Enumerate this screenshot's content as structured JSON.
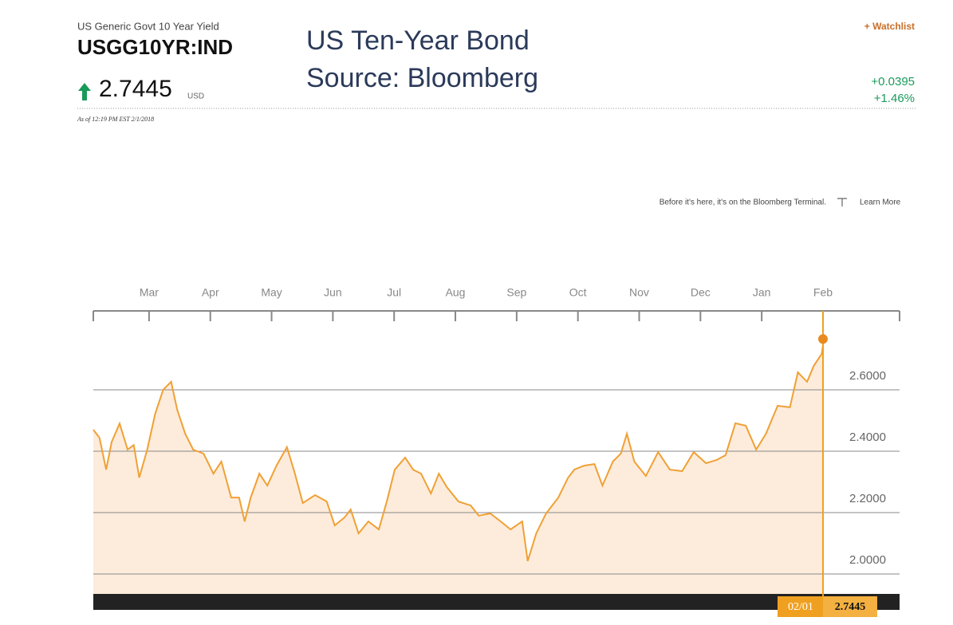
{
  "header": {
    "subtitle": "US Generic Govt 10 Year Yield",
    "ticker": "USGG10YR:IND",
    "price": "2.7445",
    "currency": "USD",
    "as_of": "As of 12:19 PM EST 2/1/2018",
    "watchlist": "+ Watchlist",
    "change": "+0.0395",
    "change_pct": "+1.46%"
  },
  "overlay": {
    "line1": "US Ten-Year Bond",
    "line2": "Source: Bloomberg"
  },
  "promo": {
    "text": "Before it's here, it's on the Bloomberg Terminal.",
    "link": "Learn More"
  },
  "chart_data": {
    "type": "line",
    "color": "#f0a035",
    "fill": "#fdecdb",
    "x": [
      0.09,
      0.19,
      0.3,
      0.39,
      0.52,
      0.65,
      0.75,
      0.84,
      0.97,
      1.1,
      1.23,
      1.36,
      1.46,
      1.59,
      1.72,
      1.89,
      2.05,
      2.18,
      2.34,
      2.47,
      2.56,
      2.66,
      2.8,
      2.93,
      3.08,
      3.25,
      3.38,
      3.51,
      3.71,
      3.9,
      4.03,
      4.19,
      4.29,
      4.42,
      4.58,
      4.75,
      4.88,
      5.01,
      5.18,
      5.31,
      5.44,
      5.6,
      5.73,
      5.86,
      6.05,
      6.25,
      6.38,
      6.57,
      6.74,
      6.9,
      7.09,
      7.18,
      7.32,
      7.48,
      7.68,
      7.84,
      7.94,
      8.1,
      8.27,
      8.4,
      8.57,
      8.7,
      8.8,
      8.92,
      9.11,
      9.31,
      9.5,
      9.7,
      9.89,
      10.09,
      10.26,
      10.41,
      10.57,
      10.74,
      10.91,
      11.07,
      11.26,
      11.46,
      11.59,
      11.74,
      11.85,
      11.98,
      12.0
    ],
    "values": [
      2.47,
      2.444,
      2.34,
      2.43,
      2.49,
      2.405,
      2.42,
      2.314,
      2.405,
      2.522,
      2.6,
      2.626,
      2.535,
      2.457,
      2.405,
      2.392,
      2.327,
      2.366,
      2.249,
      2.249,
      2.171,
      2.249,
      2.327,
      2.288,
      2.353,
      2.413,
      2.327,
      2.231,
      2.257,
      2.236,
      2.158,
      2.184,
      2.21,
      2.132,
      2.171,
      2.145,
      2.236,
      2.34,
      2.379,
      2.34,
      2.327,
      2.262,
      2.327,
      2.283,
      2.236,
      2.223,
      2.19,
      2.197,
      2.171,
      2.145,
      2.171,
      2.042,
      2.132,
      2.197,
      2.249,
      2.314,
      2.34,
      2.353,
      2.358,
      2.288,
      2.366,
      2.392,
      2.457,
      2.366,
      2.319,
      2.397,
      2.34,
      2.335,
      2.397,
      2.361,
      2.371,
      2.387,
      2.491,
      2.483,
      2.405,
      2.457,
      2.548,
      2.543,
      2.657,
      2.626,
      2.678,
      2.717,
      2.7445
    ],
    "xlim": [
      0.09,
      13.25
    ],
    "xticks": [
      {
        "value": 1,
        "label": "Mar"
      },
      {
        "value": 2,
        "label": "Apr"
      },
      {
        "value": 3,
        "label": "May"
      },
      {
        "value": 4,
        "label": "Jun"
      },
      {
        "value": 5,
        "label": "Jul"
      },
      {
        "value": 6,
        "label": "Aug"
      },
      {
        "value": 7,
        "label": "Sep"
      },
      {
        "value": 8,
        "label": "Oct"
      },
      {
        "value": 9,
        "label": "Nov"
      },
      {
        "value": 10,
        "label": "Dec"
      },
      {
        "value": 11,
        "label": "Jan"
      },
      {
        "value": 12,
        "label": "Feb"
      }
    ],
    "ylim": [
      1.935,
      2.831
    ],
    "yticks": [
      {
        "value": 2.0,
        "label": "2.0000"
      },
      {
        "value": 2.2,
        "label": "2.2000"
      },
      {
        "value": 2.4,
        "label": "2.4000"
      },
      {
        "value": 2.6,
        "label": "2.6000"
      }
    ],
    "grid": true,
    "cursor_label": "02/01"
  }
}
